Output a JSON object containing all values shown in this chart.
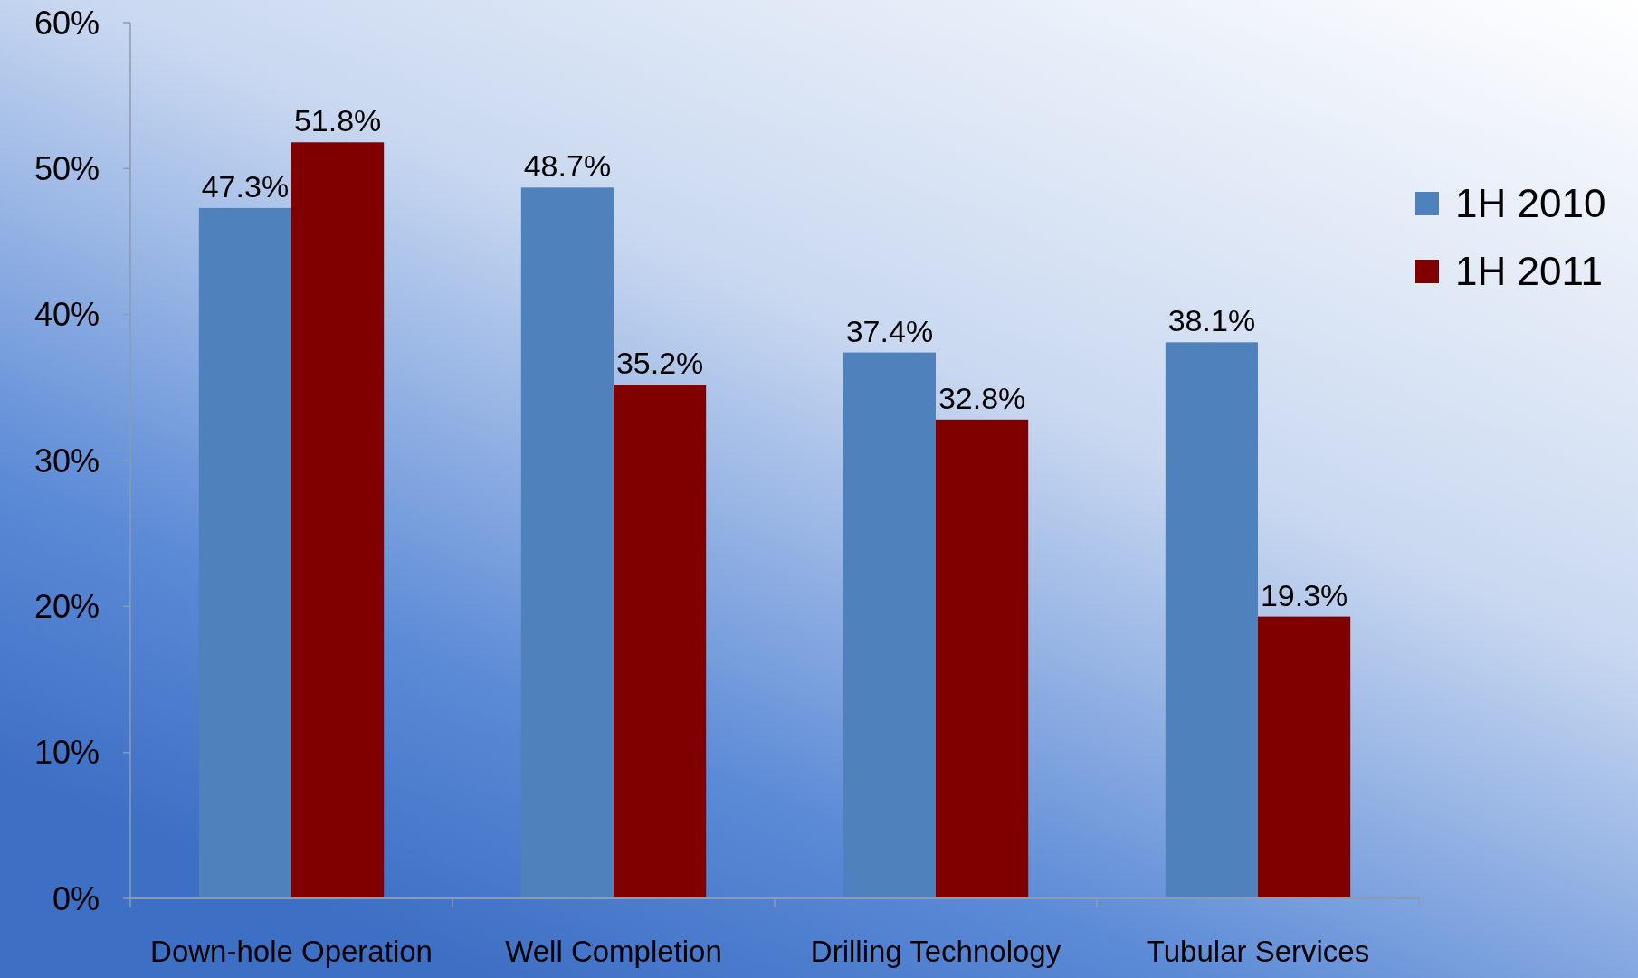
{
  "chart_data": {
    "type": "bar",
    "categories": [
      "Down-hole Operation",
      "Well Completion",
      "Drilling Technology",
      "Tubular Services"
    ],
    "series": [
      {
        "name": "1H 2010",
        "color": "#4f81bd",
        "values": [
          47.3,
          48.7,
          37.4,
          38.1
        ]
      },
      {
        "name": "1H 2011",
        "color": "#800000",
        "values": [
          51.8,
          35.2,
          32.8,
          19.3
        ]
      }
    ],
    "ylim": [
      0,
      60
    ],
    "yticks": [
      {
        "value": 0,
        "label": "0%"
      },
      {
        "value": 10,
        "label": "10%"
      },
      {
        "value": 20,
        "label": "20%"
      },
      {
        "value": 30,
        "label": "30%"
      },
      {
        "value": 40,
        "label": "40%"
      },
      {
        "value": 50,
        "label": "50%"
      },
      {
        "value": 60,
        "label": "60%"
      }
    ],
    "value_labels": [
      [
        "47.3%",
        "48.7%",
        "37.4%",
        "38.1%"
      ],
      [
        "51.8%",
        "35.2%",
        "32.8%",
        "19.3%"
      ]
    ],
    "legend": "right",
    "grid": false
  }
}
